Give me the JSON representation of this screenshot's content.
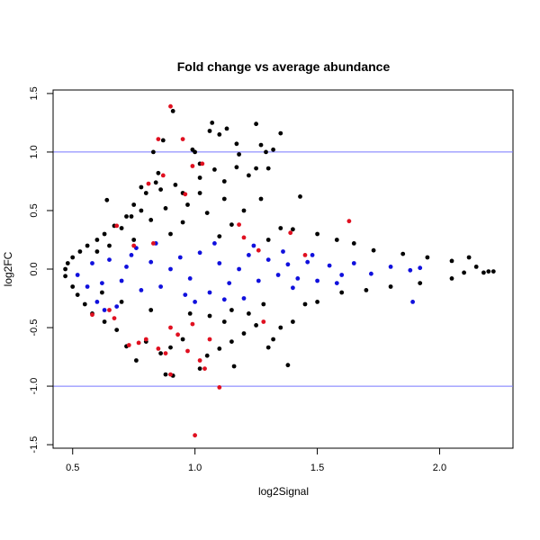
{
  "chart_data": {
    "type": "scatter",
    "title": "Fold change vs average abundance",
    "xlabel": "log2Signal",
    "ylabel": "log2FC",
    "xlim": [
      0.42,
      2.3
    ],
    "ylim": [
      -1.53,
      1.53
    ],
    "x_ticks": [
      0.5,
      1.0,
      1.5,
      2.0
    ],
    "x_tick_labels": [
      "0.5",
      "1.0",
      "1.5",
      "2.0"
    ],
    "y_ticks": [
      -1.5,
      -1.0,
      -0.5,
      0.0,
      0.5,
      1.0,
      1.5
    ],
    "y_tick_labels": [
      "-1.5",
      "-1.0",
      "-0.5",
      "0.0",
      "0.5",
      "1.0",
      "1.5"
    ],
    "grid": false,
    "legend": "none",
    "reference_lines": {
      "y": [
        1.0,
        -1.0
      ],
      "color": "#7777ff"
    },
    "colors": {
      "black": "#000000",
      "blue": "#1010dd",
      "red": "#e01020"
    },
    "series": [
      {
        "color": "black",
        "points": [
          [
            0.91,
            1.35
          ],
          [
            1.07,
            1.25
          ],
          [
            1.13,
            1.2
          ],
          [
            1.25,
            1.24
          ],
          [
            1.35,
            1.16
          ],
          [
            1.06,
            1.18
          ],
          [
            1.1,
            1.15
          ],
          [
            0.87,
            1.1
          ],
          [
            1.17,
            1.07
          ],
          [
            1.27,
            1.06
          ],
          [
            1.32,
            1.02
          ],
          [
            1.29,
            1.0
          ],
          [
            0.99,
            1.02
          ],
          [
            0.83,
            1.0
          ],
          [
            1.0,
            1.0
          ],
          [
            1.18,
            0.98
          ],
          [
            1.02,
            0.9
          ],
          [
            1.08,
            0.85
          ],
          [
            1.17,
            0.87
          ],
          [
            1.25,
            0.86
          ],
          [
            1.3,
            0.86
          ],
          [
            0.85,
            0.82
          ],
          [
            1.02,
            0.78
          ],
          [
            1.12,
            0.75
          ],
          [
            1.22,
            0.8
          ],
          [
            0.78,
            0.7
          ],
          [
            0.86,
            0.68
          ],
          [
            0.95,
            0.65
          ],
          [
            1.12,
            0.6
          ],
          [
            1.27,
            0.6
          ],
          [
            1.43,
            0.62
          ],
          [
            0.75,
            0.55
          ],
          [
            0.88,
            0.52
          ],
          [
            1.05,
            0.48
          ],
          [
            1.2,
            0.5
          ],
          [
            0.64,
            0.59
          ],
          [
            0.72,
            0.45
          ],
          [
            0.82,
            0.42
          ],
          [
            0.95,
            0.4
          ],
          [
            1.15,
            0.38
          ],
          [
            1.35,
            0.35
          ],
          [
            1.4,
            0.34
          ],
          [
            1.5,
            0.3
          ],
          [
            1.65,
            0.22
          ],
          [
            1.58,
            0.25
          ],
          [
            1.73,
            0.16
          ],
          [
            1.85,
            0.13
          ],
          [
            1.95,
            0.1
          ],
          [
            2.05,
            0.07
          ],
          [
            2.12,
            0.1
          ],
          [
            2.15,
            0.02
          ],
          [
            2.2,
            -0.02
          ],
          [
            2.18,
            -0.03
          ],
          [
            2.22,
            -0.02
          ],
          [
            2.1,
            -0.03
          ],
          [
            2.05,
            -0.08
          ],
          [
            1.92,
            -0.12
          ],
          [
            1.8,
            -0.15
          ],
          [
            1.7,
            -0.18
          ],
          [
            1.6,
            -0.2
          ],
          [
            1.5,
            -0.28
          ],
          [
            1.45,
            -0.3
          ],
          [
            1.4,
            -0.45
          ],
          [
            1.35,
            -0.5
          ],
          [
            1.32,
            -0.6
          ],
          [
            1.25,
            -0.48
          ],
          [
            1.2,
            -0.55
          ],
          [
            1.15,
            -0.62
          ],
          [
            1.1,
            -0.68
          ],
          [
            1.05,
            -0.74
          ],
          [
            1.02,
            -0.85
          ],
          [
            1.16,
            -0.83
          ],
          [
            1.3,
            -0.67
          ],
          [
            1.38,
            -0.82
          ],
          [
            0.95,
            -0.6
          ],
          [
            0.9,
            -0.67
          ],
          [
            0.86,
            -0.72
          ],
          [
            0.8,
            -0.62
          ],
          [
            0.76,
            -0.78
          ],
          [
            0.72,
            -0.66
          ],
          [
            0.68,
            -0.52
          ],
          [
            0.63,
            -0.45
          ],
          [
            0.58,
            -0.38
          ],
          [
            0.55,
            -0.3
          ],
          [
            0.52,
            -0.22
          ],
          [
            0.5,
            -0.15
          ],
          [
            0.47,
            -0.06
          ],
          [
            0.47,
            0.0
          ],
          [
            0.48,
            0.05
          ],
          [
            0.5,
            0.1
          ],
          [
            0.53,
            0.15
          ],
          [
            0.56,
            0.2
          ],
          [
            0.6,
            0.25
          ],
          [
            0.63,
            0.3
          ],
          [
            0.67,
            0.37
          ],
          [
            0.7,
            0.35
          ],
          [
            0.74,
            0.45
          ],
          [
            0.78,
            0.5
          ],
          [
            0.8,
            0.65
          ],
          [
            0.84,
            0.74
          ],
          [
            0.92,
            0.72
          ],
          [
            0.97,
            0.55
          ],
          [
            1.02,
            0.65
          ],
          [
            0.6,
            0.15
          ],
          [
            0.65,
            0.2
          ],
          [
            0.75,
            0.25
          ],
          [
            0.9,
            0.3
          ],
          [
            1.1,
            0.28
          ],
          [
            1.3,
            0.25
          ],
          [
            0.62,
            -0.2
          ],
          [
            0.7,
            -0.28
          ],
          [
            0.82,
            -0.35
          ],
          [
            0.98,
            -0.38
          ],
          [
            1.15,
            -0.35
          ],
          [
            1.28,
            -0.3
          ],
          [
            0.88,
            -0.9
          ],
          [
            0.91,
            -0.91
          ],
          [
            1.06,
            -0.4
          ],
          [
            1.22,
            -0.38
          ],
          [
            1.12,
            -0.45
          ]
        ]
      },
      {
        "color": "blue",
        "points": [
          [
            0.52,
            -0.05
          ],
          [
            0.58,
            0.05
          ],
          [
            0.62,
            -0.12
          ],
          [
            0.65,
            0.08
          ],
          [
            0.7,
            -0.1
          ],
          [
            0.74,
            0.12
          ],
          [
            0.78,
            -0.18
          ],
          [
            0.82,
            0.06
          ],
          [
            0.86,
            -0.15
          ],
          [
            0.9,
            0.0
          ],
          [
            0.94,
            0.1
          ],
          [
            0.98,
            -0.08
          ],
          [
            1.02,
            0.14
          ],
          [
            1.06,
            -0.2
          ],
          [
            1.1,
            0.05
          ],
          [
            1.14,
            -0.12
          ],
          [
            1.18,
            0.0
          ],
          [
            1.22,
            0.12
          ],
          [
            1.26,
            -0.1
          ],
          [
            1.3,
            0.08
          ],
          [
            1.34,
            -0.05
          ],
          [
            1.38,
            0.04
          ],
          [
            1.42,
            -0.08
          ],
          [
            1.46,
            0.06
          ],
          [
            1.5,
            -0.1
          ],
          [
            1.55,
            0.03
          ],
          [
            1.6,
            -0.05
          ],
          [
            1.65,
            0.05
          ],
          [
            1.72,
            -0.04
          ],
          [
            1.8,
            0.02
          ],
          [
            1.88,
            -0.01
          ],
          [
            1.89,
            -0.28
          ],
          [
            1.92,
            0.01
          ],
          [
            0.6,
            -0.28
          ],
          [
            0.68,
            -0.32
          ],
          [
            0.76,
            0.18
          ],
          [
            0.84,
            0.22
          ],
          [
            1.0,
            -0.28
          ],
          [
            1.12,
            -0.26
          ],
          [
            1.24,
            0.2
          ],
          [
            1.36,
            0.15
          ],
          [
            0.56,
            -0.15
          ],
          [
            0.63,
            -0.35
          ],
          [
            0.72,
            0.02
          ],
          [
            0.96,
            -0.22
          ],
          [
            1.08,
            0.22
          ],
          [
            1.2,
            -0.25
          ],
          [
            1.4,
            -0.16
          ],
          [
            1.48,
            0.12
          ],
          [
            1.58,
            -0.12
          ]
        ]
      },
      {
        "color": "red",
        "points": [
          [
            0.9,
            1.39
          ],
          [
            0.85,
            1.11
          ],
          [
            0.95,
            1.11
          ],
          [
            0.87,
            0.8
          ],
          [
            1.03,
            0.9
          ],
          [
            0.81,
            0.73
          ],
          [
            0.96,
            0.64
          ],
          [
            0.99,
            0.88
          ],
          [
            1.63,
            0.41
          ],
          [
            1.39,
            0.31
          ],
          [
            1.18,
            0.38
          ],
          [
            1.2,
            0.27
          ],
          [
            0.83,
            0.22
          ],
          [
            0.68,
            0.37
          ],
          [
            0.58,
            -0.39
          ],
          [
            0.67,
            -0.42
          ],
          [
            0.73,
            -0.65
          ],
          [
            0.77,
            -0.63
          ],
          [
            0.8,
            -0.6
          ],
          [
            0.85,
            -0.68
          ],
          [
            0.88,
            -0.72
          ],
          [
            0.9,
            -0.5
          ],
          [
            0.93,
            -0.56
          ],
          [
            0.97,
            -0.7
          ],
          [
            1.02,
            -0.78
          ],
          [
            1.04,
            -0.85
          ],
          [
            1.06,
            -0.6
          ],
          [
            1.28,
            -0.45
          ],
          [
            1.1,
            -1.01
          ],
          [
            0.9,
            -0.9
          ],
          [
            1.0,
            -1.42
          ],
          [
            0.99,
            -0.47
          ],
          [
            0.65,
            -0.35
          ],
          [
            0.75,
            0.2
          ],
          [
            1.26,
            0.16
          ],
          [
            1.45,
            0.12
          ]
        ]
      }
    ]
  }
}
